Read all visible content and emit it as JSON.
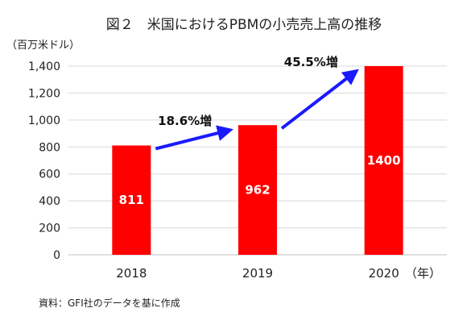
{
  "chart_data": {
    "type": "bar",
    "title": "図２　米国におけるPBMの小売売上高の推移",
    "ylabel": "（百万米ドル）",
    "xunit": "（年）",
    "categories": [
      "2018",
      "2019",
      "2020"
    ],
    "values": [
      811,
      962,
      1400
    ],
    "data_labels": [
      "811",
      "962",
      "1400"
    ],
    "ylim": [
      0,
      1400
    ],
    "yticks": [
      "0",
      "200",
      "400",
      "600",
      "800",
      "1,000",
      "1,200",
      "1,400"
    ],
    "grid": true,
    "bar_color": "#ff0000",
    "arrow_color": "#1a1aff",
    "annotations": [
      {
        "text": "18.6%増",
        "from": "2018",
        "to": "2019"
      },
      {
        "text": "45.5%増",
        "from": "2019",
        "to": "2020"
      }
    ],
    "source": "資料：GFI社のデータを基に作成"
  }
}
